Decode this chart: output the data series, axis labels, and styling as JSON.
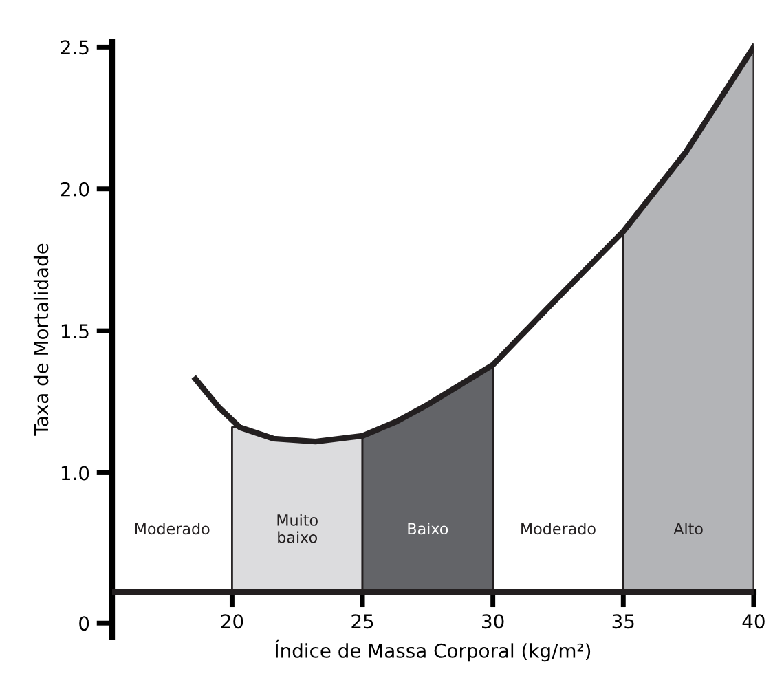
{
  "chart_data": {
    "type": "line",
    "xlabel": "Índice de Massa Corporal (kg/m²)",
    "ylabel": "Taxa de Mortalidade",
    "xlim": [
      15.4,
      40
    ],
    "xticks": [
      20,
      25,
      30,
      35,
      40
    ],
    "ylim": [
      0.42,
      2.52
    ],
    "yticks": [
      {
        "value": 0.47,
        "label": "0"
      },
      {
        "value": 1.0,
        "label": "1.0"
      },
      {
        "value": 1.5,
        "label": "1.5"
      },
      {
        "value": 2.0,
        "label": "2.0"
      },
      {
        "value": 2.5,
        "label": "2.5"
      }
    ],
    "ref_lines": [
      {
        "axis": "y",
        "value": 0.58,
        "color": "#231f20"
      }
    ],
    "series": [
      {
        "type": "area",
        "color": "#dcdcde",
        "x": [
          20,
          20.3,
          21.6,
          23.2,
          25
        ],
        "values": [
          1.16,
          1.16,
          1.12,
          1.11,
          1.13
        ]
      },
      {
        "type": "area",
        "color": "#636468",
        "x": [
          25,
          26.3,
          27.5,
          30
        ],
        "values": [
          1.13,
          1.18,
          1.24,
          1.38
        ]
      },
      {
        "type": "area",
        "color": "#b3b4b7",
        "x": [
          35,
          37.4,
          40
        ],
        "values": [
          1.85,
          2.13,
          2.5
        ]
      },
      {
        "color": "#231f20",
        "x": [
          18.6,
          19.5,
          20.3,
          21.6,
          23.2,
          25,
          26.3,
          27.5,
          30,
          32.1,
          35,
          37.4,
          40
        ],
        "values": [
          1.33,
          1.23,
          1.16,
          1.12,
          1.11,
          1.13,
          1.18,
          1.24,
          1.38,
          1.58,
          1.85,
          2.13,
          2.5
        ]
      }
    ],
    "annotations": [
      "Moderado",
      "Muito\nbaixo",
      "Baixo",
      "Moderado",
      "Alto"
    ],
    "grid": false,
    "legend": false
  }
}
